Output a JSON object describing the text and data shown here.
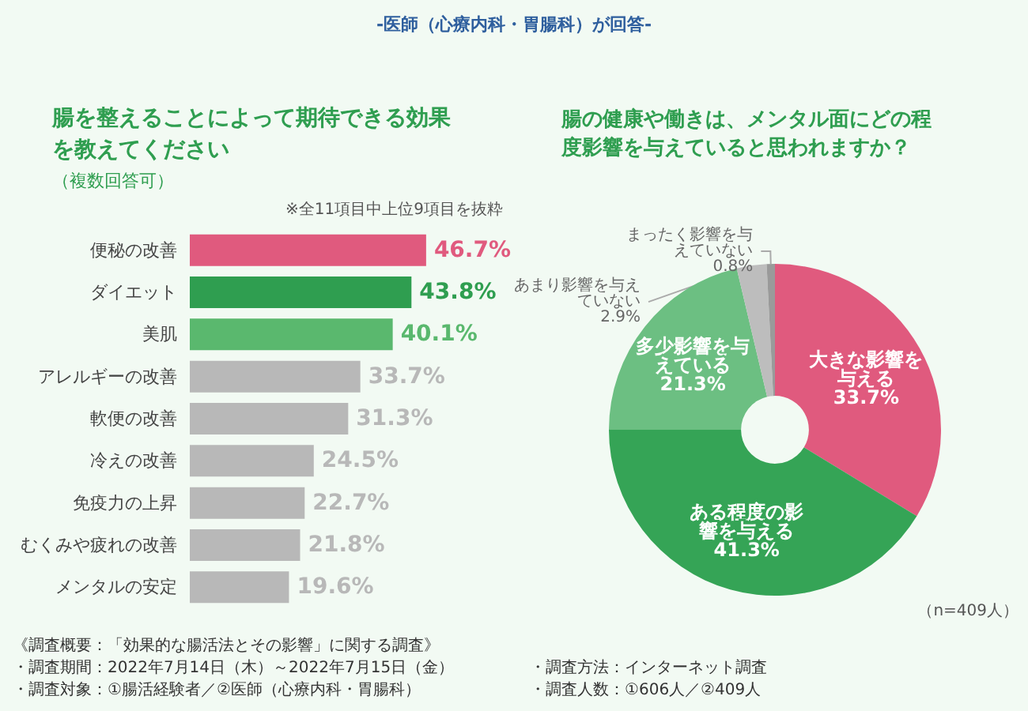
{
  "chart_data": [
    {
      "type": "bar",
      "orientation": "horizontal",
      "title": "腸を整えることによって期待できる効果を教えてください",
      "subtitle": "（複数回答可）",
      "annotations": [
        "-医師（心療内科・胃腸科）が回答-",
        "※全11項目中上位9項目を抜粋",
        "《調査概要：「効果的な腸活法とその影響」に関する調査》",
        "・調査期間：2022年7月14日（木）～2022年7月15日（金）",
        "・調査方法：インターネット調査",
        "・調査対象：①腸活経験者／②医師（心療内科・胃腸科）",
        "・調査人数：①606人／②409人"
      ],
      "categories": [
        "便秘の改善",
        "ダイエット",
        "美肌",
        "アレルギーの改善",
        "軟便の改善",
        "冷えの改善",
        "免疫力の上昇",
        "むくみや疲れの改善",
        "メンタルの安定"
      ],
      "values": [
        46.7,
        43.8,
        40.1,
        33.7,
        31.3,
        24.5,
        22.7,
        21.8,
        19.6
      ],
      "value_labels": [
        "46.7%",
        "43.8%",
        "40.1%",
        "33.7%",
        "31.3%",
        "24.5%",
        "22.7%",
        "21.8%",
        "19.6%"
      ],
      "colors": [
        "#e05a7e",
        "#2f9e50",
        "#5ab86e",
        "#b8b8b8",
        "#b8b8b8",
        "#b8b8b8",
        "#b8b8b8",
        "#b8b8b8",
        "#b8b8b8"
      ],
      "tick_labels": "y",
      "legend": false
    },
    {
      "type": "donut",
      "title": "腸の健康や働きは、メンタル面にどの程度影響を与えていると思われますか？",
      "annotations": [
        "（n=409人）"
      ],
      "categories": [
        "大きな影響を与える",
        "ある程度の影響を与える",
        "多少影響を与えている",
        "あまり影響を与えていない",
        "まったく影響を与えていない"
      ],
      "values": [
        33.7,
        41.3,
        21.3,
        2.9,
        0.8
      ],
      "value_labels": [
        "33.7%",
        "41.3%",
        "21.3%",
        "2.9%",
        "0.8%"
      ],
      "colors": [
        "#e05a7e",
        "#35a456",
        "#6cbf82",
        "#bdbdbd",
        "#9a9a9a"
      ],
      "legend": false
    }
  ]
}
